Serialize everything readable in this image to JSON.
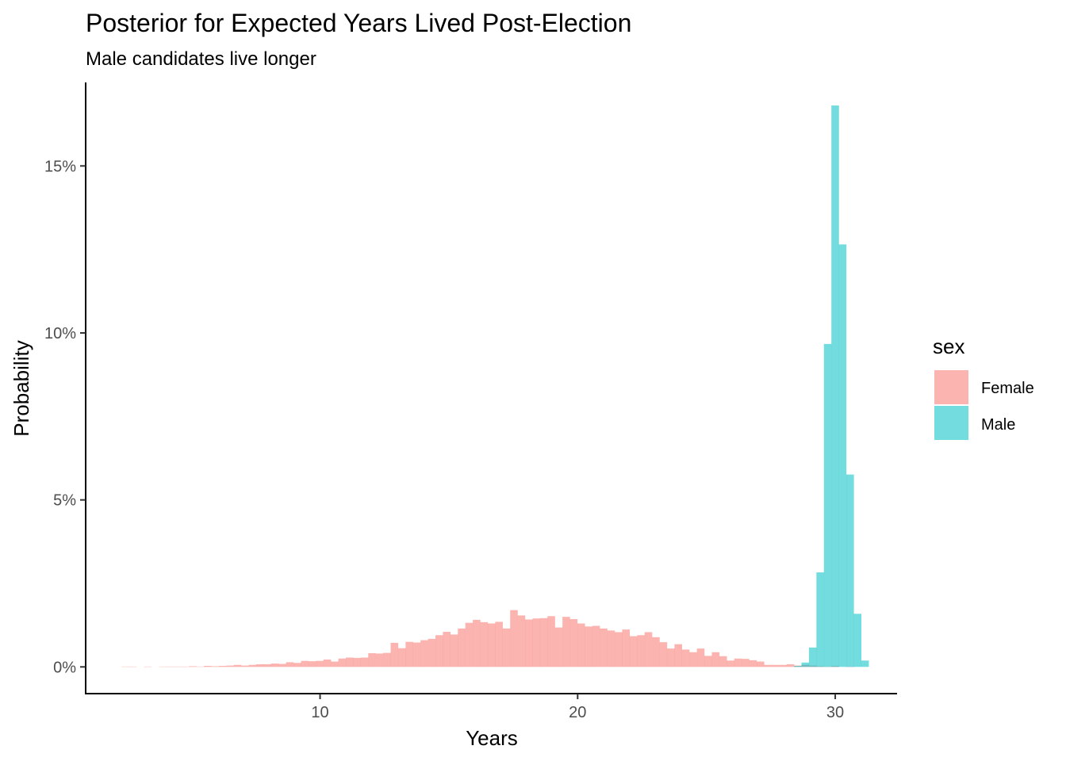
{
  "chart_data": {
    "type": "histogram",
    "title": "Posterior for Expected Years Lived Post-Election",
    "subtitle": "Male candidates live longer",
    "xlabel": "Years",
    "ylabel": "Probability",
    "xlim": [
      0.9,
      32.4
    ],
    "ylim": [
      -0.008,
      0.175
    ],
    "x_ticks": [
      10,
      20,
      30
    ],
    "x_tick_labels": [
      "10",
      "20",
      "30"
    ],
    "y_ticks": [
      0,
      0.05,
      0.1,
      0.15
    ],
    "y_tick_labels": [
      "0%",
      "5%",
      "10%",
      "15%"
    ],
    "grid": false,
    "legend": {
      "title": "sex",
      "position": "right"
    },
    "bin_width": 0.29,
    "series": [
      {
        "name": "Female",
        "color": "#F8766D",
        "x_start": 2.3,
        "values": [
          0.0001,
          0.0001,
          0.0,
          0.0001,
          0.0,
          0.0001,
          0.0001,
          0.0001,
          0.0001,
          0.0002,
          0.0001,
          0.0003,
          0.0002,
          0.0003,
          0.0004,
          0.0006,
          0.0004,
          0.0006,
          0.0008,
          0.0008,
          0.001,
          0.0009,
          0.0014,
          0.0012,
          0.0018,
          0.0017,
          0.0018,
          0.0022,
          0.0016,
          0.0025,
          0.0028,
          0.0027,
          0.0028,
          0.0041,
          0.004,
          0.0042,
          0.0072,
          0.0056,
          0.0075,
          0.0073,
          0.008,
          0.0084,
          0.0095,
          0.0105,
          0.0097,
          0.0115,
          0.0132,
          0.0141,
          0.0134,
          0.013,
          0.0135,
          0.0115,
          0.017,
          0.0154,
          0.0142,
          0.0145,
          0.0146,
          0.0152,
          0.0118,
          0.015,
          0.0143,
          0.013,
          0.0121,
          0.0123,
          0.0115,
          0.0109,
          0.0104,
          0.0112,
          0.0092,
          0.0095,
          0.0104,
          0.0089,
          0.0074,
          0.0055,
          0.0068,
          0.0052,
          0.0044,
          0.0055,
          0.0033,
          0.0044,
          0.0032,
          0.0019,
          0.0025,
          0.0024,
          0.002,
          0.0016,
          0.0006,
          0.0006,
          0.0006,
          0.0008,
          0.0004,
          0.0006,
          0.0004,
          0.0002,
          0.0001,
          0.0003,
          0.0,
          0.0001
        ]
      },
      {
        "name": "Male",
        "color": "#00BFC4",
        "x_start": 28.4,
        "values": [
          0.0003,
          0.0013,
          0.0058,
          0.0283,
          0.0967,
          0.1681,
          0.1265,
          0.0576,
          0.0159,
          0.0019
        ]
      }
    ]
  }
}
